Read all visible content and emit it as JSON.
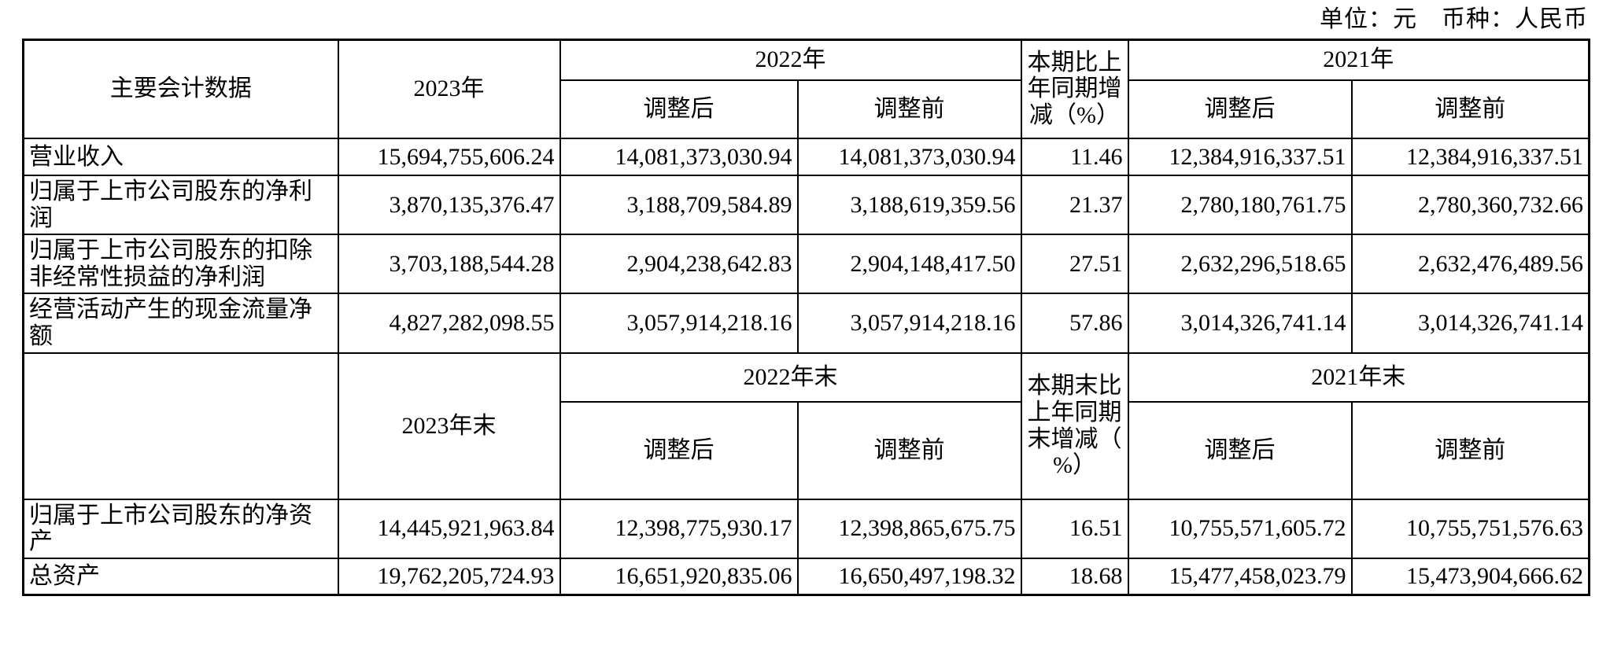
{
  "note": "单位：元　币种：人民币",
  "table": {
    "adjusted_label": "调整后",
    "original_label": "调整前",
    "section1": {
      "header": {
        "metric": "主要会计数据",
        "y2023": "2023年",
        "y2022": "2022年",
        "change": "本期比上年同期增减（%）",
        "y2021": "2021年"
      },
      "rows": [
        {
          "label": "营业收入",
          "y2023": "15,694,755,606.24",
          "y2022_adj": "14,081,373,030.94",
          "y2022_pre": "14,081,373,030.94",
          "change": "11.46",
          "y2021_adj": "12,384,916,337.51",
          "y2021_pre": "12,384,916,337.51"
        },
        {
          "label": "归属于上市公司股东的净利润",
          "y2023": "3,870,135,376.47",
          "y2022_adj": "3,188,709,584.89",
          "y2022_pre": "3,188,619,359.56",
          "change": "21.37",
          "y2021_adj": "2,780,180,761.75",
          "y2021_pre": "2,780,360,732.66"
        },
        {
          "label": "归属于上市公司股东的扣除非经常性损益的净利润",
          "y2023": "3,703,188,544.28",
          "y2022_adj": "2,904,238,642.83",
          "y2022_pre": "2,904,148,417.50",
          "change": "27.51",
          "y2021_adj": "2,632,296,518.65",
          "y2021_pre": "2,632,476,489.56"
        },
        {
          "label": "经营活动产生的现金流量净额",
          "y2023": "4,827,282,098.55",
          "y2022_adj": "3,057,914,218.16",
          "y2022_pre": "3,057,914,218.16",
          "change": "57.86",
          "y2021_adj": "3,014,326,741.14",
          "y2021_pre": "3,014,326,741.14"
        }
      ]
    },
    "section2": {
      "header": {
        "metric": "",
        "y2023": "2023年末",
        "y2022": "2022年末",
        "change": "本期末比上年同期末增减（%）",
        "y2021": "2021年末"
      },
      "rows": [
        {
          "label": "归属于上市公司股东的净资产",
          "y2023": "14,445,921,963.84",
          "y2022_adj": "12,398,775,930.17",
          "y2022_pre": "12,398,865,675.75",
          "change": "16.51",
          "y2021_adj": "10,755,571,605.72",
          "y2021_pre": "10,755,751,576.63"
        },
        {
          "label": "总资产",
          "y2023": "19,762,205,724.93",
          "y2022_adj": "16,651,920,835.06",
          "y2022_pre": "16,650,497,198.32",
          "change": "18.68",
          "y2021_adj": "15,477,458,023.79",
          "y2021_pre": "15,473,904,666.62"
        }
      ]
    }
  }
}
